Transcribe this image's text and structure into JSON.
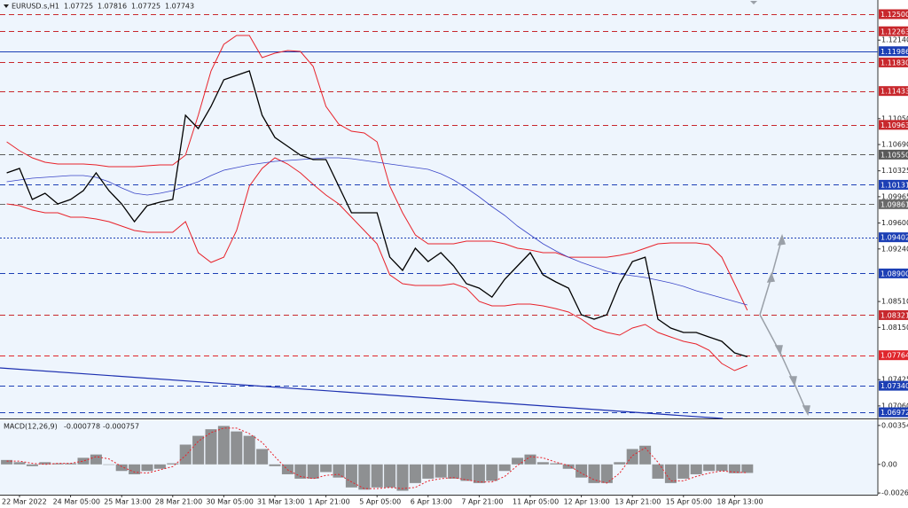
{
  "chart_data": [
    {
      "type": "line",
      "title": "EURUSD.s,H1",
      "quote": [
        1.07725,
        1.07816,
        1.07725,
        1.07743
      ],
      "categories": [
        null,
        "22 Mar 2022",
        null,
        null,
        null,
        "24 Mar 05:00",
        null,
        null,
        null,
        "25 Mar 13:00",
        null,
        null,
        null,
        "28 Mar 21:00",
        null,
        null,
        null,
        "30 Mar 05:00",
        null,
        null,
        null,
        "31 Mar 13:00",
        null,
        null,
        null,
        "1 Apr 21:00",
        null,
        null,
        null,
        "5 Apr 05:00",
        null,
        null,
        null,
        "6 Apr 13:00",
        null,
        null,
        null,
        "7 Apr 21:00",
        null,
        null,
        null,
        "11 Apr 05:00",
        null,
        null,
        null,
        "12 Apr 13:00",
        null,
        null,
        null,
        "13 Apr 21:00",
        null,
        null,
        null,
        "15 Apr 05:00",
        null,
        null,
        null,
        "18 Apr 13:00",
        null
      ],
      "series": [
        {
          "color": "#000000",
          "width": 1.3,
          "values": [
            1.10296,
            1.10358,
            1.09927,
            1.10013,
            1.09865,
            1.09927,
            1.1005,
            1.10296,
            1.1005,
            1.09865,
            1.09619,
            1.09841,
            1.0989,
            1.09927,
            1.11096,
            1.10912,
            1.1122,
            1.11589,
            1.1165,
            1.11712,
            1.11096,
            1.10789,
            1.10665,
            1.10542,
            1.10481,
            1.10481,
            1.10111,
            1.09742,
            1.09742,
            1.09742,
            1.09126,
            1.08942,
            1.0925,
            1.09065,
            1.09188,
            1.09003,
            1.08757,
            1.08696,
            1.08572,
            1.08819,
            1.09003,
            1.09188,
            1.0888,
            1.08782,
            1.08696,
            1.08326,
            1.08265,
            1.08326,
            1.08757,
            1.09065,
            1.09126,
            1.08265,
            1.08142,
            1.0808,
            1.0808,
            1.08018,
            1.07957,
            1.07797,
            1.07743
          ]
        },
        {
          "color": "#e8222a",
          "width": 1,
          "values": [
            1.10727,
            1.10604,
            1.10505,
            1.10444,
            1.10419,
            1.10419,
            1.10419,
            1.10407,
            1.10382,
            1.10382,
            1.10382,
            1.10395,
            1.10407,
            1.10407,
            1.10542,
            1.11096,
            1.11712,
            1.12081,
            1.12205,
            1.12205,
            1.11897,
            1.11958,
            1.11995,
            1.11983,
            1.11774,
            1.1122,
            1.10973,
            1.10875,
            1.1085,
            1.10727,
            1.10111,
            1.09742,
            1.09434,
            1.09311,
            1.09311,
            1.09311,
            1.09348,
            1.09348,
            1.09348,
            1.09311,
            1.0925,
            1.09225,
            1.09188,
            1.09188,
            1.09126,
            1.09126,
            1.09126,
            1.09126,
            1.09151,
            1.09188,
            1.0925,
            1.09311,
            1.09324,
            1.09324,
            1.09324,
            1.09299,
            1.09126,
            1.08757,
            1.08388
          ]
        },
        {
          "color": "#e8222a",
          "width": 1,
          "values": [
            1.09865,
            1.09841,
            1.09779,
            1.09742,
            1.09742,
            1.09681,
            1.09681,
            1.09656,
            1.09619,
            1.09557,
            1.09496,
            1.09471,
            1.09471,
            1.09471,
            1.09619,
            1.09188,
            1.09053,
            1.09126,
            1.09496,
            1.10111,
            1.10358,
            1.10505,
            1.10419,
            1.10296,
            1.10136,
            1.09988,
            1.09865,
            1.09681,
            1.09496,
            1.09311,
            1.0888,
            1.08757,
            1.08733,
            1.08733,
            1.08733,
            1.08757,
            1.08696,
            1.08511,
            1.08449,
            1.08449,
            1.08474,
            1.08474,
            1.08449,
            1.08412,
            1.08363,
            1.08265,
            1.08142,
            1.0808,
            1.08043,
            1.08142,
            1.08191,
            1.0808,
            1.08018,
            1.07957,
            1.0792,
            1.07834,
            1.07649,
            1.07551,
            1.07624
          ]
        },
        {
          "color": "#3a46c8",
          "width": 0.8,
          "values": [
            1.10173,
            1.10198,
            1.10222,
            1.10235,
            1.10247,
            1.10259,
            1.10259,
            1.10235,
            1.10173,
            1.10087,
            1.10013,
            1.09988,
            1.10013,
            1.1005,
            1.10111,
            1.10173,
            1.10259,
            1.10333,
            1.1037,
            1.10407,
            1.10432,
            1.10456,
            1.10469,
            1.10481,
            1.10493,
            1.10505,
            1.10505,
            1.10493,
            1.10469,
            1.10444,
            1.10419,
            1.10395,
            1.1037,
            1.10345,
            1.10284,
            1.10198,
            1.10087,
            1.09964,
            1.09828,
            1.09705,
            1.09557,
            1.09434,
            1.09311,
            1.09213,
            1.09126,
            1.09053,
            1.08991,
            1.0893,
            1.08893,
            1.08868,
            1.08843,
            1.08806,
            1.08769,
            1.0872,
            1.08659,
            1.08609,
            1.0856,
            1.08511,
            1.08462
          ]
        }
      ],
      "levels": [
        {
          "value": 1.125,
          "label": "1.12500",
          "color": "#c8282d",
          "style": "dashed"
        },
        {
          "value": 1.12263,
          "color": "#c8282d",
          "style": "dashed"
        },
        {
          "value": 1.11986,
          "color": "#1c3fb5",
          "style": "solid"
        },
        {
          "value": 1.1183,
          "label": "1.11830",
          "color": "#c8282d",
          "style": "dashed"
        },
        {
          "value": 1.11433,
          "color": "#c8282d",
          "style": "dashed"
        },
        {
          "value": 1.10963,
          "color": "#c8282d",
          "style": "dashed"
        },
        {
          "value": 1.1055,
          "label": "1.10550",
          "color": "#5a5a5a",
          "style": "dashed"
        },
        {
          "value": 1.10131,
          "color": "#1c3fb5",
          "style": "dashed"
        },
        {
          "value": 1.09861,
          "color": "#6a6a6a",
          "style": "dashed"
        },
        {
          "value": 1.09402,
          "color": "#1c3fb5",
          "style": "dotted"
        },
        {
          "value": 1.089,
          "label": "1.08900",
          "color": "#1c3fb5",
          "style": "dashed"
        },
        {
          "value": 1.08321,
          "color": "#c8282d",
          "style": "dashed"
        },
        {
          "value": 1.07764,
          "color": "#e0252b",
          "style": "dashed"
        },
        {
          "value": 1.0734,
          "label": "1.07340",
          "color": "#1c3fb5",
          "style": "dashed"
        },
        {
          "value": 1.06972,
          "color": "#1c3fb5",
          "style": "dashed"
        }
      ],
      "trendline": {
        "start": 1.07588,
        "end": 1.06886,
        "color": "#1c2fb0"
      },
      "ylim": [
        1.06886,
        1.12697
      ],
      "yticks": [
        {
          "value": 1.1214,
          "label": "1.12140"
        },
        {
          "value": 1.1105,
          "label": "1.11050"
        },
        {
          "value": 1.1069,
          "label": "1.10690"
        },
        1.10325,
        1.09965,
        {
          "value": 1.096,
          "label": "1.09600"
        },
        {
          "value": 1.0924,
          "label": "1.09240"
        },
        {
          "value": 1.0851,
          "label": "1.08510"
        },
        {
          "value": 1.0815,
          "label": "1.08150"
        },
        1.07425,
        {
          "value": 1.0706,
          "label": "1.07060"
        }
      ]
    },
    {
      "type": "macd",
      "title": "MACD(12,26,9)",
      "quote": [
        -0.000778,
        -0.000757
      ],
      "series": [
        {
          "color": "#6e6e6e",
          "values": [
            0.0004,
            0.0002,
            -0.00016,
            0.0002,
            0.0001,
            0.0001,
            0.0006,
            0.0009,
            0,
            -0.0006,
            -0.0009,
            -0.0006,
            -0.0004,
            0.0001,
            0.0018,
            0.0026,
            0.0032,
            0.0035,
            0.003,
            0.0026,
            0.0014,
            -0.00016,
            -0.0009,
            -0.0013,
            -0.0013,
            -0.0007,
            -0.0012,
            -0.0021,
            -0.0023,
            -0.0021,
            -0.0021,
            -0.0024,
            -0.0017,
            -0.0013,
            -0.0012,
            -0.0013,
            -0.0015,
            -0.0017,
            -0.0015,
            -0.0006,
            0.0006,
            0.0009,
            0.0002,
            0.0001,
            -0.0004,
            -0.0012,
            -0.0017,
            -0.0017,
            0.0002,
            0.0014,
            0.0017,
            -0.0013,
            -0.0017,
            -0.0013,
            -0.0009,
            -0.0006,
            -0.0006,
            -0.0008,
            -0.000778
          ]
        },
        {
          "color": "#e8222a",
          "values": [
            0.0003,
            0.0003,
            0.0001,
            0,
            0.0001,
            0.0001,
            0.0003,
            0.0007,
            0.0005,
            -0.0002,
            -0.0007,
            -0.0008,
            -0.0005,
            -0.0002,
            0.0008,
            0.0021,
            0.0029,
            0.0033,
            0.0033,
            0.0028,
            0.002,
            0.0007,
            -0.0005,
            -0.0011,
            -0.0013,
            -0.001,
            -0.0009,
            -0.0016,
            -0.0022,
            -0.0022,
            -0.0021,
            -0.0022,
            -0.0021,
            -0.0015,
            -0.0013,
            -0.0012,
            -0.0014,
            -0.0016,
            -0.0016,
            -0.0011,
            -0.0001,
            0.0007,
            0.0006,
            0.0002,
            -0.0001,
            -0.0008,
            -0.0014,
            -0.0017,
            -0.0008,
            0.0008,
            0.0015,
            0.0002,
            -0.0015,
            -0.0015,
            -0.0011,
            -0.0008,
            -0.0006,
            -0.0007,
            -0.000757
          ]
        }
      ],
      "ylim": [
        -0.00276,
        0.00402
      ],
      "yticks": [
        0.003545,
        {
          "value": 0,
          "label": "0.00"
        },
        -0.002607
      ]
    }
  ]
}
